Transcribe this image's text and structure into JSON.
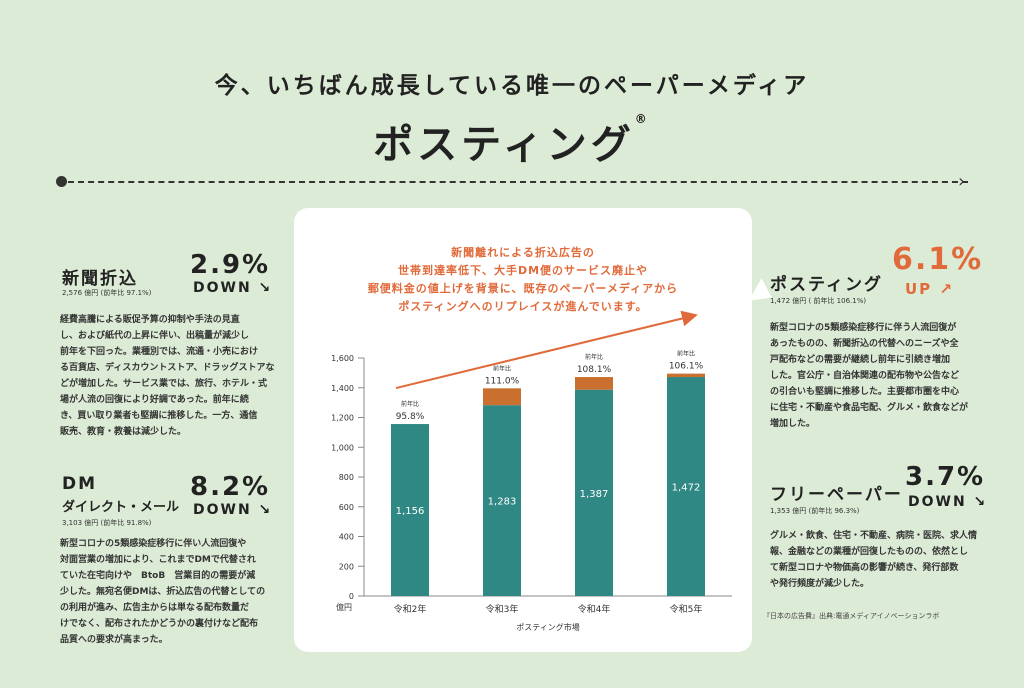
{
  "header": {
    "subtitle": "今、いちばん成長している唯一のペーパーメディア",
    "title": "ポスティング",
    "title_mark": "®"
  },
  "segments": {
    "shinbun": {
      "name": "新聞折込",
      "meta": "2,576 億円 (前年比 97.1%)",
      "pct": "2.9%",
      "dir": "DOWN ↘",
      "body": [
        "経費高騰による販促予算の抑制や手法の見直",
        "し、および紙代の上昇に伴い、出稿量が減少し",
        "前年を下回った。業種別では、流通・小売におけ",
        "る百貨店、ディスカウントストア、ドラッグストアな",
        "どが増加した。サービス業では、旅行、ホテル・式",
        "場が人流の回復により好調であった。前年に続",
        "き、買い取り業者も堅調に推移した。一方、通信",
        "販売、教育・教養は減少した。"
      ]
    },
    "dm": {
      "name": "DM",
      "sub": "ダイレクト・メール",
      "meta": "3,103 億円 (前年比 91.8%)",
      "pct": "8.2%",
      "dir": "DOWN ↘",
      "body": [
        "新型コロナの5類感染症移行に伴い人流回復や",
        "対面営業の増加により、これまでDMで代替され",
        "ていた在宅向けや　BtoB　営業目的の需要が減",
        "少した。無宛名便DMは、折込広告の代替としての",
        "の利用が進み、広告主からは単なる配布数量だ",
        "けでなく、配布されたかどうかの裏付けなど配布",
        "品質への要求が高まった。"
      ]
    },
    "posting": {
      "name": "ポスティング",
      "meta": "1,472 億円 ( 前年比 106.1%)",
      "pct": "6.1%",
      "dir": "UP ↗",
      "body": [
        "新型コロナの5類感染症移行に伴う人流回復が",
        "あったものの、新聞折込の代替へのニーズや全",
        "戸配布などの需要が継続し前年に引続き増加",
        "した。官公庁・自治体関連の配布物や公告など",
        "の引合いも堅調に推移した。主要都市圏を中心",
        "に住宅・不動産や食品宅配、グルメ・飲食などが",
        "増加した。"
      ]
    },
    "freepaper": {
      "name": "フリーペーパー",
      "meta": "1,353 億円 (前年比 96.3%)",
      "pct": "3.7%",
      "dir": "DOWN ↘",
      "body": [
        "グルメ・飲食、住宅・不動産、病院・医院、求人情",
        "報、金融などの業種が回復したものの、依然とし",
        "て新型コロナや物価高の影響が続き、発行部数",
        "や発行頻度が減少した。"
      ]
    }
  },
  "callout": [
    "新聞離れによる折込広告の",
    "世帯到達率低下、大手DM便のサービス廃止や",
    "郵便料金の値上げを背景に、既存のペーパーメディアから",
    "ポスティングへのリプレイスが進んでいます。"
  ],
  "source": "『日本の広告費』出典:電通メディアイノベーションラボ",
  "chart_data": {
    "type": "bar",
    "categories": [
      "令和2年",
      "令和3年",
      "令和4年",
      "令和5年"
    ],
    "series": [
      {
        "values": [
          1156,
          1283,
          1387,
          1472
        ]
      },
      {
        "values": [
          1156,
          1396,
          1472,
          1495
        ]
      }
    ],
    "yoy_prefix": "前年比",
    "yoy": [
      "95.8%",
      "111.0%",
      "108.1%",
      "106.1%"
    ],
    "ylim": [
      0,
      1600
    ],
    "yticks": [
      "0",
      "200",
      "400",
      "600",
      "800",
      "1,000",
      "1,200",
      "1,400",
      "1,600"
    ],
    "yunit": "億円",
    "xlabel": "ポスティング市場",
    "colors": {
      "base": "#2f8884",
      "increase": "#c9702f",
      "trend": "#e06a3a",
      "axis": "#888888"
    }
  }
}
